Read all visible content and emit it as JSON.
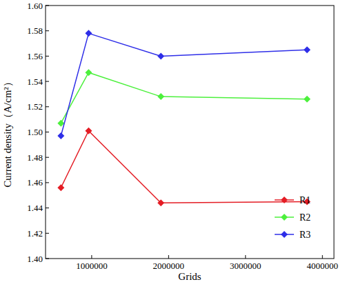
{
  "chart_data": {
    "type": "line",
    "x_label": "Grids",
    "y_label": "Current density（A/cm²）",
    "x": [
      600000,
      960000,
      1900000,
      3800000
    ],
    "series": [
      {
        "name": "R1",
        "color": "#e41c24",
        "marker": "diamond",
        "line_style": "solid",
        "values": [
          1.456,
          1.501,
          1.444,
          1.445
        ]
      },
      {
        "name": "R2",
        "color": "#4cf03c",
        "marker": "diamond",
        "line_style": "solid",
        "values": [
          1.507,
          1.547,
          1.528,
          1.526
        ]
      },
      {
        "name": "R3",
        "color": "#2e2ee8",
        "marker": "diamond",
        "line_style": "solid",
        "values": [
          1.497,
          1.578,
          1.56,
          1.565
        ]
      }
    ],
    "xlim": [
      400000,
      4150000
    ],
    "xticks": [
      1000000,
      2000000,
      3000000,
      4000000
    ],
    "ylim": [
      1.4,
      1.6
    ],
    "yticks": [
      {
        "value": 1.4,
        "label": "1.40"
      },
      {
        "value": 1.42,
        "label": "1.42"
      },
      {
        "value": 1.44,
        "label": "1.44"
      },
      {
        "value": 1.46,
        "label": "1.46"
      },
      {
        "value": 1.48,
        "label": "1.48"
      },
      {
        "value": 1.5,
        "label": "1.50"
      },
      {
        "value": 1.52,
        "label": "1.52"
      },
      {
        "value": 1.54,
        "label": "1.54"
      },
      {
        "value": 1.56,
        "label": "1.56"
      },
      {
        "value": 1.58,
        "label": "1.58"
      },
      {
        "value": 1.6,
        "label": "1.60"
      }
    ],
    "grid": false,
    "legend": "lower right"
  }
}
